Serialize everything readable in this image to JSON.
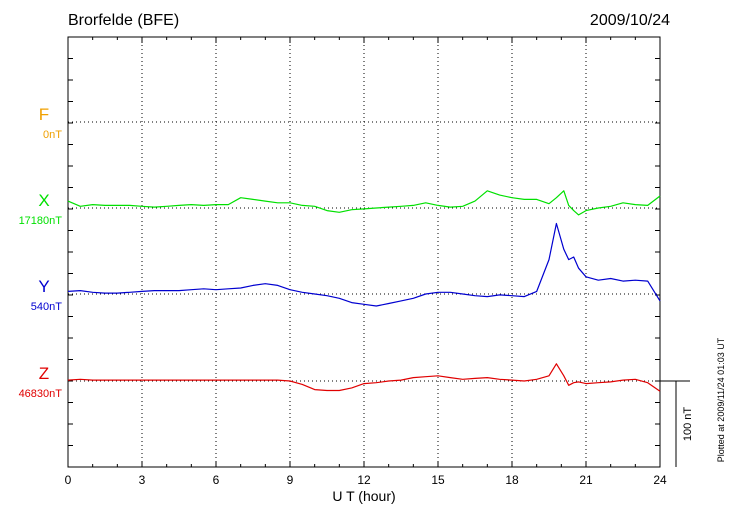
{
  "header": {
    "station": "Brorfelde (BFE)",
    "date": "2009/10/24"
  },
  "footer": {
    "plotted": "Plotted at 2009/11/24 01:03 UT"
  },
  "scale_bar": {
    "label": "100 nT",
    "value_nT": 100
  },
  "chart_data": {
    "type": "line",
    "title": "Brorfelde (BFE)",
    "date": "2009/10/24",
    "xlabel": "U T (hour)",
    "xlim": [
      0,
      24
    ],
    "xticks": [
      "0",
      "3",
      "6",
      "9",
      "12",
      "15",
      "18",
      "21",
      "24"
    ],
    "x_hours": [
      0,
      0.5,
      1,
      1.5,
      2,
      2.5,
      3,
      3.5,
      4,
      4.5,
      5,
      5.5,
      6,
      6.5,
      7,
      7.5,
      8,
      8.5,
      9,
      9.5,
      10,
      10.5,
      11,
      11.5,
      12,
      12.5,
      13,
      13.5,
      14,
      14.5,
      15,
      15.5,
      16,
      16.5,
      17,
      17.5,
      18,
      18.5,
      19,
      19.5,
      19.8,
      20.1,
      20.3,
      20.5,
      20.7,
      21,
      21.5,
      22,
      22.5,
      23,
      23.5,
      24
    ],
    "grid": true,
    "series": [
      {
        "name": "F",
        "baseline_label": "0nT",
        "color": "#f0a000",
        "values": []
      },
      {
        "name": "X",
        "baseline_label": "17180nT",
        "color": "#00e000",
        "values": [
          8,
          2,
          4,
          3,
          3,
          3,
          2,
          1,
          2,
          3,
          4,
          3,
          4,
          4,
          12,
          10,
          8,
          6,
          6,
          3,
          2,
          -3,
          -5,
          -2,
          -1,
          0,
          1,
          2,
          3,
          6,
          3,
          1,
          2,
          8,
          20,
          15,
          12,
          10,
          10,
          5,
          12,
          20,
          3,
          -3,
          -8,
          -3,
          0,
          2,
          6,
          4,
          3,
          14
        ]
      },
      {
        "name": "Y",
        "baseline_label": "540nT",
        "color": "#0000d0",
        "values": [
          3,
          4,
          2,
          1,
          1,
          2,
          3,
          4,
          4,
          4,
          5,
          6,
          5,
          6,
          7,
          10,
          12,
          10,
          5,
          2,
          0,
          -2,
          -5,
          -10,
          -12,
          -14,
          -11,
          -8,
          -5,
          0,
          2,
          2,
          0,
          -2,
          -3,
          -1,
          -2,
          -3,
          3,
          40,
          82,
          52,
          40,
          43,
          30,
          20,
          16,
          18,
          15,
          16,
          15,
          -8
        ]
      },
      {
        "name": "Z",
        "baseline_label": "46830nT",
        "color": "#e00000",
        "values": [
          1,
          2,
          1,
          1,
          1,
          1,
          1,
          1,
          1,
          1,
          1,
          1,
          1,
          1,
          1,
          1,
          1,
          1,
          0,
          -4,
          -10,
          -11,
          -11,
          -8,
          -3,
          -2,
          0,
          1,
          4,
          5,
          6,
          4,
          2,
          3,
          4,
          2,
          1,
          0,
          2,
          6,
          20,
          6,
          -5,
          -2,
          -1,
          -3,
          -2,
          -1,
          1,
          2,
          -2,
          -12
        ]
      }
    ]
  }
}
